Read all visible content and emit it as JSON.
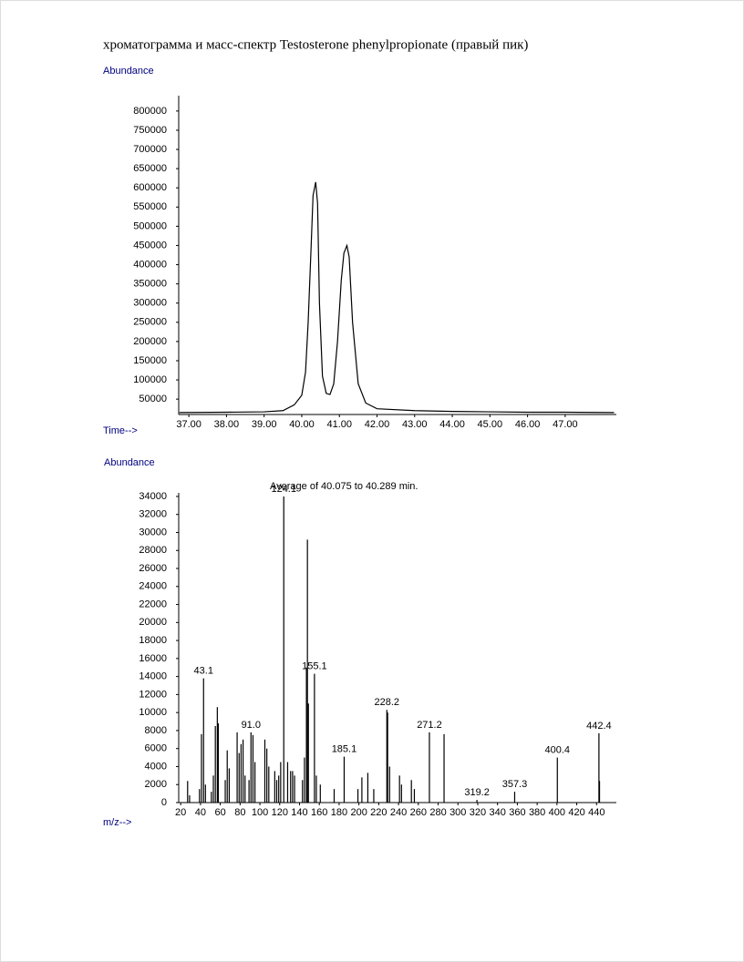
{
  "heading": "хроматограмма и масс-спектр Testosterone phenylpropionate (правый пик)",
  "chart_data": [
    {
      "type": "line",
      "ylabel": "Abundance",
      "xlabel": "Time-->",
      "color": "#000000",
      "xlim": [
        36.73,
        48.36
      ],
      "ylim": [
        10000,
        840000
      ],
      "xticks": [
        {
          "value": 37,
          "label": "37.00"
        },
        {
          "value": 38,
          "label": "38.00"
        },
        {
          "value": 39,
          "label": "39.00"
        },
        {
          "value": 40,
          "label": "40.00"
        },
        {
          "value": 41,
          "label": "41.00"
        },
        {
          "value": 42,
          "label": "42.00"
        },
        {
          "value": 43,
          "label": "43.00"
        },
        {
          "value": 44,
          "label": "44.00"
        },
        {
          "value": 45,
          "label": "45.00"
        },
        {
          "value": 46,
          "label": "46.00"
        },
        {
          "value": 47,
          "label": "47.00"
        }
      ],
      "yticks": [
        50000,
        100000,
        150000,
        200000,
        250000,
        300000,
        350000,
        400000,
        450000,
        500000,
        550000,
        600000,
        650000,
        700000,
        750000,
        800000
      ],
      "x": [
        36.75,
        38,
        39,
        39.5,
        39.8,
        40.0,
        40.1,
        40.17,
        40.25,
        40.3,
        40.37,
        40.42,
        40.47,
        40.55,
        40.65,
        40.75,
        40.85,
        40.95,
        41.05,
        41.12,
        41.2,
        41.26,
        41.35,
        41.5,
        41.7,
        42.0,
        43,
        44,
        45,
        46,
        47,
        48.3
      ],
      "values": [
        15000,
        16000,
        17000,
        20000,
        35000,
        60000,
        120000,
        250000,
        450000,
        580000,
        615000,
        560000,
        300000,
        110000,
        65000,
        62000,
        90000,
        200000,
        360000,
        430000,
        450000,
        420000,
        250000,
        90000,
        40000,
        25000,
        20000,
        18000,
        17000,
        16000,
        16000,
        15000
      ]
    },
    {
      "type": "bar",
      "ylabel": "Abundance",
      "xlabel": "m/z-->",
      "annotation": "Average of 40.075 to 40.289 min.",
      "color": "#000000",
      "label_color": "#000080",
      "xlim": [
        18,
        460
      ],
      "ylim": [
        0,
        34400
      ],
      "xticks": [
        20,
        40,
        60,
        80,
        100,
        120,
        140,
        160,
        180,
        200,
        220,
        240,
        260,
        280,
        300,
        320,
        340,
        360,
        380,
        400,
        420,
        440
      ],
      "yticks": [
        0,
        2000,
        4000,
        6000,
        8000,
        10000,
        12000,
        14000,
        16000,
        18000,
        20000,
        22000,
        24000,
        26000,
        28000,
        30000,
        32000,
        34000
      ],
      "x": [
        27,
        29,
        39,
        41,
        43.1,
        45,
        51,
        53,
        55,
        57,
        58,
        65,
        67,
        69,
        77,
        79,
        81,
        83,
        85,
        89,
        91.0,
        93,
        95,
        105,
        107,
        109,
        115,
        117,
        119,
        121,
        124.1,
        128,
        131,
        133,
        135,
        143,
        145,
        147,
        148,
        149,
        155.1,
        157,
        161,
        175,
        185.1,
        199,
        203,
        209,
        215,
        228.2,
        229,
        231,
        241,
        243,
        253,
        256,
        271.2,
        286,
        319.2,
        357.3,
        400.4,
        442.4,
        443
      ],
      "values": [
        2400,
        800,
        1500,
        7600,
        13800,
        2000,
        1200,
        3000,
        8500,
        10600,
        8800,
        2500,
        5800,
        3800,
        7800,
        5500,
        6500,
        7000,
        3000,
        2500,
        7800,
        7500,
        4500,
        7000,
        6000,
        4000,
        3500,
        2500,
        3000,
        4500,
        34000,
        4500,
        3500,
        3500,
        3000,
        2500,
        5000,
        15000,
        29200,
        11000,
        14300,
        3000,
        2000,
        1500,
        5100,
        1500,
        2800,
        3300,
        1500,
        10300,
        10000,
        4000,
        3000,
        2000,
        2500,
        1500,
        7800,
        7600,
        300,
        1200,
        5000,
        7700,
        2400
      ],
      "peak_labels": [
        null,
        null,
        null,
        null,
        "43.1",
        null,
        null,
        null,
        null,
        null,
        null,
        null,
        null,
        null,
        null,
        null,
        null,
        null,
        null,
        null,
        "91.0",
        null,
        null,
        null,
        null,
        null,
        null,
        null,
        null,
        null,
        "124.1",
        null,
        null,
        null,
        null,
        null,
        null,
        null,
        null,
        null,
        "155.1",
        null,
        null,
        null,
        "185.1",
        null,
        null,
        null,
        null,
        "228.2",
        null,
        null,
        null,
        null,
        null,
        null,
        "271.2",
        null,
        "319.2",
        "357.3",
        "400.4",
        "442.4",
        null
      ]
    }
  ]
}
